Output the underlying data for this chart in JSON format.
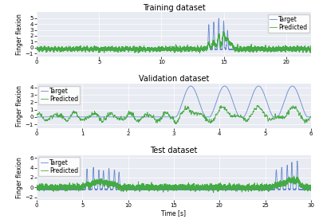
{
  "title_train": "Training dataset",
  "title_val": "Validation dataset",
  "title_test": "Test dataset",
  "xlabel": "Time [s]",
  "ylabel": "Finger flexion",
  "legend_target": "Target",
  "legend_predicted": "Predicted",
  "target_color": "#6688cc",
  "predicted_color": "#44aa44",
  "bg_color": "#e8ebf2",
  "train_xlim": [
    0,
    22
  ],
  "train_xticks": [
    0,
    5,
    10,
    15,
    20
  ],
  "train_ylim": [
    -1.5,
    6
  ],
  "train_yticks": [
    -1,
    0,
    1,
    2,
    3,
    4,
    5
  ],
  "val_xlim": [
    0,
    6
  ],
  "val_xticks": [
    0,
    1,
    2,
    3,
    4,
    5,
    6
  ],
  "val_ylim": [
    -1.5,
    4.5
  ],
  "val_yticks": [
    -1,
    0,
    1,
    2,
    3,
    4
  ],
  "test_xlim": [
    0,
    30
  ],
  "test_xticks": [
    0,
    5,
    10,
    15,
    20,
    25,
    30
  ],
  "test_ylim": [
    -2.5,
    6.5
  ],
  "test_yticks": [
    -2,
    0,
    2,
    4,
    6
  ],
  "linewidth": 0.6,
  "legend_fontsize": 5.5,
  "title_fontsize": 7,
  "tick_fontsize": 5,
  "ylabel_fontsize": 5.5
}
